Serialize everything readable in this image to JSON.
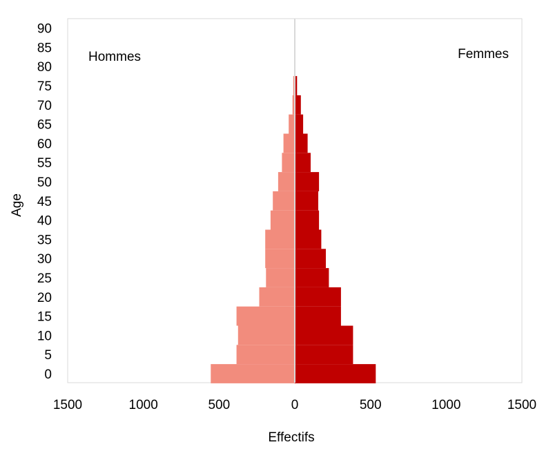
{
  "chart_data": {
    "type": "bar",
    "orientation": "horizontal",
    "xlabel": "Effectifs",
    "ylabel": "Age",
    "xlim": [
      -1500,
      1500
    ],
    "x_ticks": [
      -1500,
      -1000,
      -500,
      0,
      500,
      1000,
      1500
    ],
    "x_tick_labels": [
      "1500",
      "1000",
      "500",
      "0",
      "500",
      "1000",
      "1500"
    ],
    "y_ticks": [
      0,
      5,
      10,
      15,
      20,
      25,
      30,
      35,
      40,
      45,
      50,
      55,
      60,
      65,
      70,
      75,
      80,
      85,
      90
    ],
    "age_groups": [
      0,
      5,
      10,
      15,
      20,
      25,
      30,
      35,
      40,
      45,
      50,
      55,
      60,
      65,
      70,
      75
    ],
    "group_width": 5,
    "grid": false,
    "series": [
      {
        "name": "Hommes",
        "side": "left",
        "color": "#f28c7d",
        "values": [
          555,
          385,
          375,
          385,
          235,
          190,
          195,
          195,
          160,
          145,
          110,
          85,
          75,
          40,
          15,
          10
        ]
      },
      {
        "name": "Femmes",
        "side": "right",
        "color": "#c00000",
        "values": [
          535,
          385,
          385,
          305,
          305,
          225,
          205,
          175,
          160,
          155,
          160,
          105,
          85,
          55,
          40,
          15
        ]
      }
    ],
    "center_line_color": "#d9d9d9",
    "frame_color": "#d9d9d9"
  }
}
